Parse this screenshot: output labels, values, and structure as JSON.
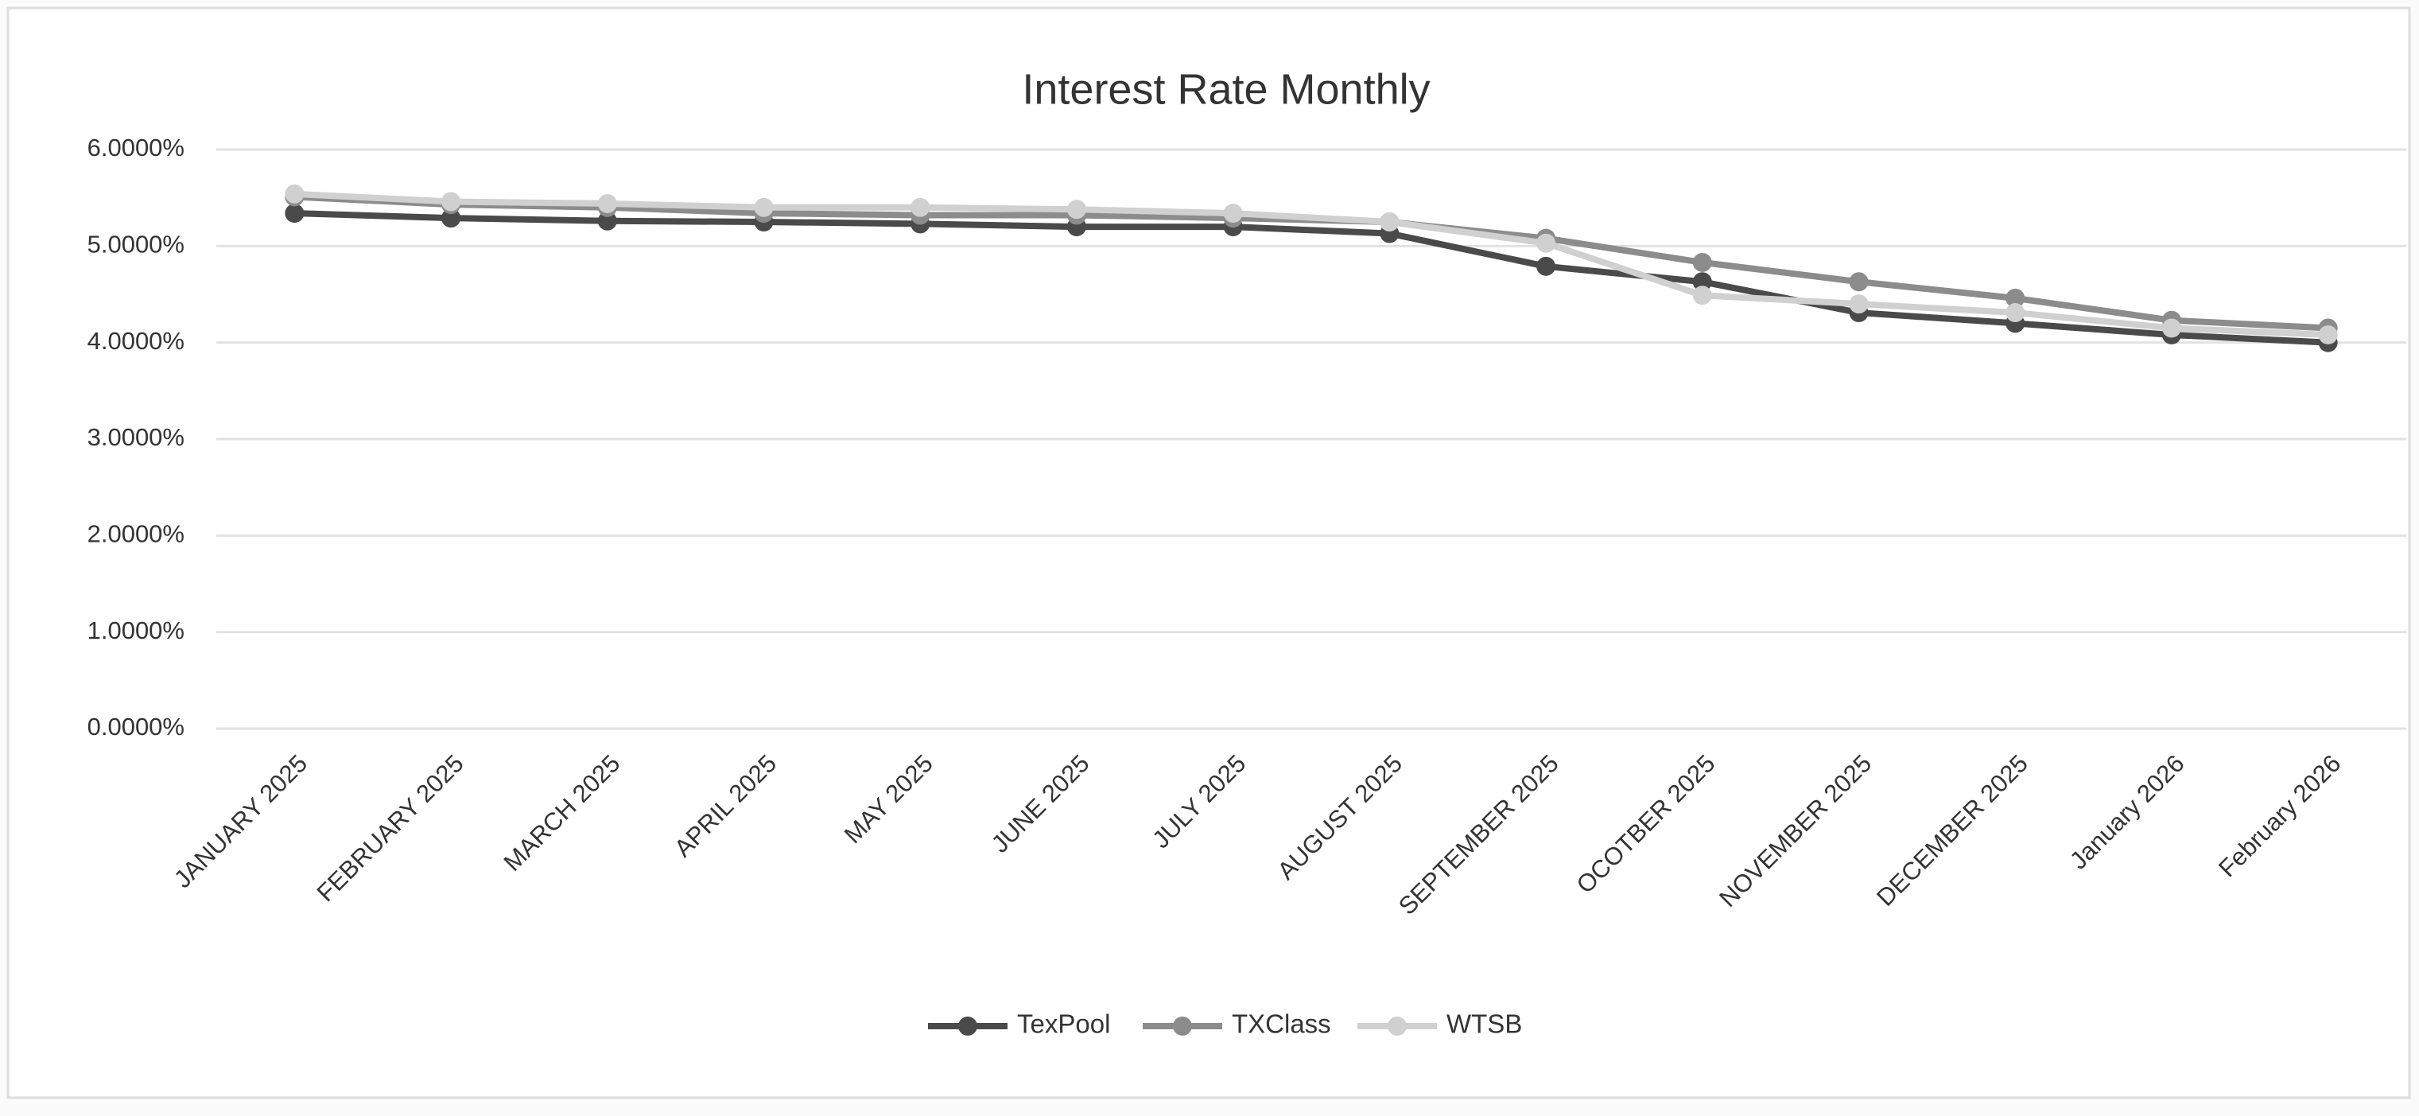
{
  "chart_data": {
    "type": "line",
    "title": "Interest Rate Monthly",
    "categories": [
      "JANUARY 2025",
      "FEBRUARY 2025",
      "MARCH 2025",
      "APRIL 2025",
      "MAY 2025",
      "JUNE 2025",
      "JULY 2025",
      "AUGUST 2025",
      "SEPTEMBER 2025",
      "OCOTBER 2025",
      "NOVEMBER 2025",
      "DECEMBER 2025",
      "January 2026",
      "February 2026"
    ],
    "series": [
      {
        "name": "TexPool",
        "color": "#4a4a4a",
        "values": [
          5.34,
          5.29,
          5.26,
          5.25,
          5.23,
          5.2,
          5.2,
          5.13,
          4.79,
          4.63,
          4.31,
          4.2,
          4.08,
          4.0
        ]
      },
      {
        "name": "TXClass",
        "color": "#8c8c8c",
        "values": [
          5.51,
          5.43,
          5.4,
          5.34,
          5.32,
          5.32,
          5.29,
          5.25,
          5.08,
          4.83,
          4.63,
          4.46,
          4.23,
          4.15
        ]
      },
      {
        "name": "WTSB",
        "color": "#d0d0d0",
        "values": [
          5.54,
          5.46,
          5.44,
          5.4,
          5.4,
          5.38,
          5.34,
          5.25,
          5.03,
          4.49,
          4.4,
          4.31,
          4.15,
          4.08
        ]
      }
    ],
    "ylim": [
      0,
      6
    ],
    "yticks": [
      {
        "value": 0,
        "label": "0.0000%"
      },
      {
        "value": 1,
        "label": "1.0000%"
      },
      {
        "value": 2,
        "label": "2.0000%"
      },
      {
        "value": 3,
        "label": "3.0000%"
      },
      {
        "value": 4,
        "label": "4.0000%"
      },
      {
        "value": 5,
        "label": "5.0000%"
      },
      {
        "value": 6,
        "label": "6.0000%"
      }
    ],
    "grid": true,
    "legend": "bottom"
  }
}
